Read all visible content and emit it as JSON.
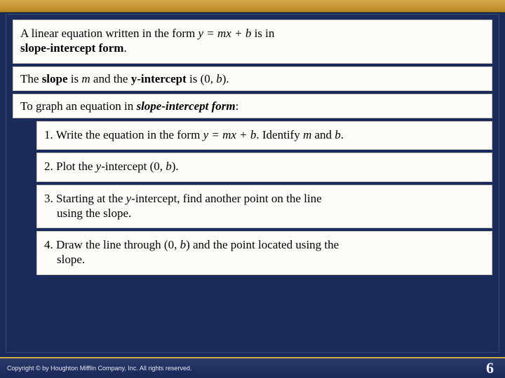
{
  "colors": {
    "page_bg": "#1a2a5a",
    "panel_bg": "#fdfcf8",
    "panel_border": "#c8c4b8",
    "top_bar_grad_from": "#d4a94a",
    "top_bar_grad_to": "#b88828",
    "footer_accent": "#d4a94a",
    "footer_text": "#e8e8f0"
  },
  "typography": {
    "body_family": "Times New Roman",
    "body_size_pt": 13,
    "footer_family": "Arial",
    "footer_size_pt": 7
  },
  "intro": {
    "t1": "A linear equation written in the form ",
    "eq": "y = mx + b",
    "t2": "  is in ",
    "bold": "slope-intercept form",
    "t3": "."
  },
  "slope_line": {
    "t1": "The ",
    "b1": "slope",
    "t2": " is ",
    "i1": "m",
    "t3": " and the ",
    "b2": "y-intercept",
    "t4": " is (0, ",
    "i2": "b",
    "t5": ")."
  },
  "graph_line": {
    "t1": "To graph an equation in ",
    "bi": "slope-intercept form",
    "t2": ":"
  },
  "steps": {
    "s1": {
      "n": "1. ",
      "t1": "Write the equation in the form ",
      "eq": "y = mx + b",
      "t2": ". Identify ",
      "i1": "m",
      "t3": " and ",
      "i2": "b",
      "t4": "."
    },
    "s2": {
      "n": "2. ",
      "t1": "Plot the ",
      "i0": "y",
      "t1b": "-intercept (0, ",
      "i1": "b",
      "t2": ")."
    },
    "s3": {
      "n": "3. ",
      "t1a": "Starting at the ",
      "i0": "y",
      "t1b": "-intercept, find another point on the line",
      "t2": "using the slope."
    },
    "s4": {
      "n": "4. ",
      "t1": "Draw the line through (0, ",
      "i1": "b",
      "t2": ") and the point located using the",
      "t3": "slope."
    }
  },
  "footer": {
    "copyright": "Copyright © by Houghton Mifflin Company, Inc. All rights reserved.",
    "page": "6"
  }
}
